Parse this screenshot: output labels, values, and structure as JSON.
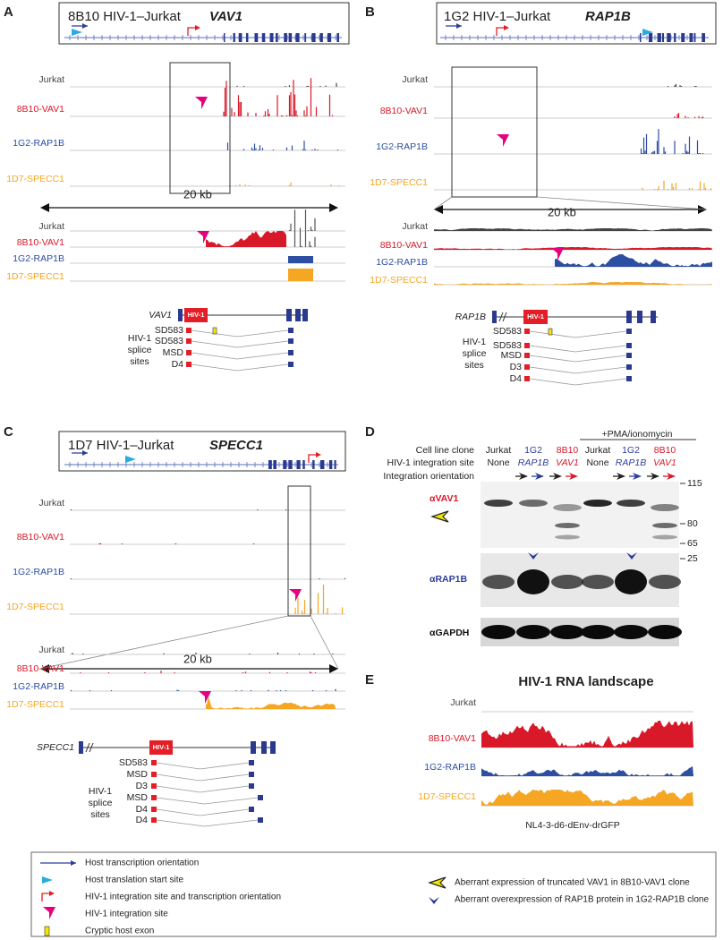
{
  "panels": {
    "a": {
      "label": "A",
      "title": "8B10 HIV-1–Jurkat",
      "gene": "VAV1",
      "tracks": [
        "Jurkat",
        "8B10-VAV1",
        "1G2-RAP1B",
        "1D7-SPECC1"
      ],
      "scale": "20 kb",
      "zoom_tracks": [
        "Jurkat",
        "8B10-VAV1",
        "1G2-RAP1B",
        "1D7-SPECC1"
      ],
      "diagram": {
        "gene": "VAV1",
        "insert": "HIV-1",
        "splice_caption": [
          "HIV-1",
          "splice",
          "sites"
        ],
        "splice_sites": [
          "SD583",
          "SD583",
          "MSD",
          "D4"
        ]
      }
    },
    "b": {
      "label": "B",
      "title": "1G2 HIV-1–Jurkat",
      "gene": "RAP1B",
      "tracks": [
        "Jurkat",
        "8B10-VAV1",
        "1G2-RAP1B",
        "1D7-SPECC1"
      ],
      "scale": "20 kb",
      "zoom_tracks": [
        "Jurkat",
        "8B10-VAV1",
        "1G2-RAP1B",
        "1D7-SPECC1"
      ],
      "diagram": {
        "gene": "RAP1B",
        "insert": "HIV-1",
        "splice_caption": [
          "HIV-1",
          "splice",
          "sites"
        ],
        "splice_sites": [
          "SD583",
          "SD583",
          "MSD",
          "D3",
          "D4"
        ]
      }
    },
    "c": {
      "label": "C",
      "title": "1D7 HIV-1–Jurkat",
      "gene": "SPECC1",
      "tracks": [
        "Jurkat",
        "8B10-VAV1",
        "1G2-RAP1B",
        "1D7-SPECC1"
      ],
      "scale": "20 kb",
      "zoom_tracks": [
        "Jurkat",
        "8B10-VAV1",
        "1G2-RAP1B",
        "1D7-SPECC1"
      ],
      "diagram": {
        "gene": "SPECC1",
        "insert": "HIV-1",
        "splice_caption": [
          "HIV-1",
          "splice",
          "sites"
        ],
        "splice_sites": [
          "SD583",
          "MSD",
          "D3",
          "MSD",
          "D4",
          "D4"
        ]
      }
    },
    "d": {
      "label": "D",
      "treatment": "+PMA/ionomycin",
      "row_labels": [
        "Cell line clone",
        "HIV-1 integration site",
        "Integration orientation"
      ],
      "columns": [
        {
          "clone": "Jurkat",
          "site": "None"
        },
        {
          "clone": "1G2",
          "site": "RAP1B"
        },
        {
          "clone": "8B10",
          "site": "VAV1"
        },
        {
          "clone": "Jurkat",
          "site": "None"
        },
        {
          "clone": "1G2",
          "site": "RAP1B"
        },
        {
          "clone": "8B10",
          "site": "VAV1"
        }
      ],
      "antibodies": [
        "αVAV1",
        "αRAP1B",
        "αGAPDH"
      ],
      "markers": [
        115,
        80,
        65,
        25
      ]
    },
    "e": {
      "label": "E",
      "title": "HIV-1 RNA landscape",
      "tracks": [
        "Jurkat",
        "8B10-VAV1",
        "1G2-RAP1B",
        "1D7-SPECC1"
      ],
      "caption": "NL4-3-d6-dEnv-drGFP"
    }
  },
  "legend": [
    "Host transcription orientation",
    "Host translation start site",
    "HIV-1 integration site and transcription orientation",
    "HIV-1 integration site",
    "Cryptic host exon",
    "Aberrant expression of truncated VAV1 in 8B10-VAV1 clone",
    "Aberrant overexpression of RAP1B protein in 1G2-RAP1B clone"
  ]
}
